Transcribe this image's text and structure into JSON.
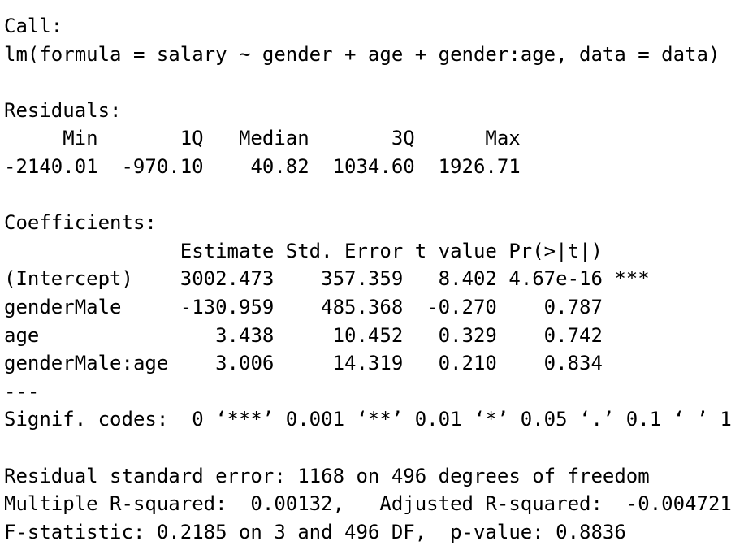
{
  "call": {
    "label": "Call:",
    "formula": "lm(formula = salary ~ gender + age + gender:age, data = data)"
  },
  "residuals": {
    "title": "Residuals:",
    "headers": [
      "Min",
      "1Q",
      "Median",
      "3Q",
      "Max"
    ],
    "values": [
      "-2140.01",
      "-970.10",
      "40.82",
      "1034.60",
      "1926.71"
    ]
  },
  "coefficients": {
    "title": "Coefficients:",
    "columns": [
      "Estimate",
      "Std. Error",
      "t value",
      "Pr(>|t|)"
    ],
    "rows": [
      {
        "name": "(Intercept)",
        "cells": [
          "3002.473",
          "357.359",
          "8.402",
          "4.67e-16"
        ],
        "signif": "***"
      },
      {
        "name": "genderMale",
        "cells": [
          "-130.959",
          "485.368",
          "-0.270",
          "0.787"
        ]
      },
      {
        "name": "age",
        "cells": [
          "3.438",
          "10.452",
          "0.329",
          "0.742"
        ]
      },
      {
        "name": "genderMale:age",
        "cells": [
          "3.006",
          "14.319",
          "0.210",
          "0.834"
        ]
      }
    ]
  },
  "separator": "---",
  "signif_codes": {
    "label": "Signif. codes:",
    "codes": "0 ‘***’ 0.001 ‘**’ 0.01 ‘*’ 0.05 ‘.’ 0.1 ‘ ’ 1"
  },
  "summary": [
    "Residual standard error: 1168 on 496 degrees of freedom",
    "Multiple R-squared:  0.00132,   Adjusted R-squared:  -0.004721",
    "F-statistic: 0.2185 on 3 and 496 DF,  p-value: 0.8836"
  ]
}
